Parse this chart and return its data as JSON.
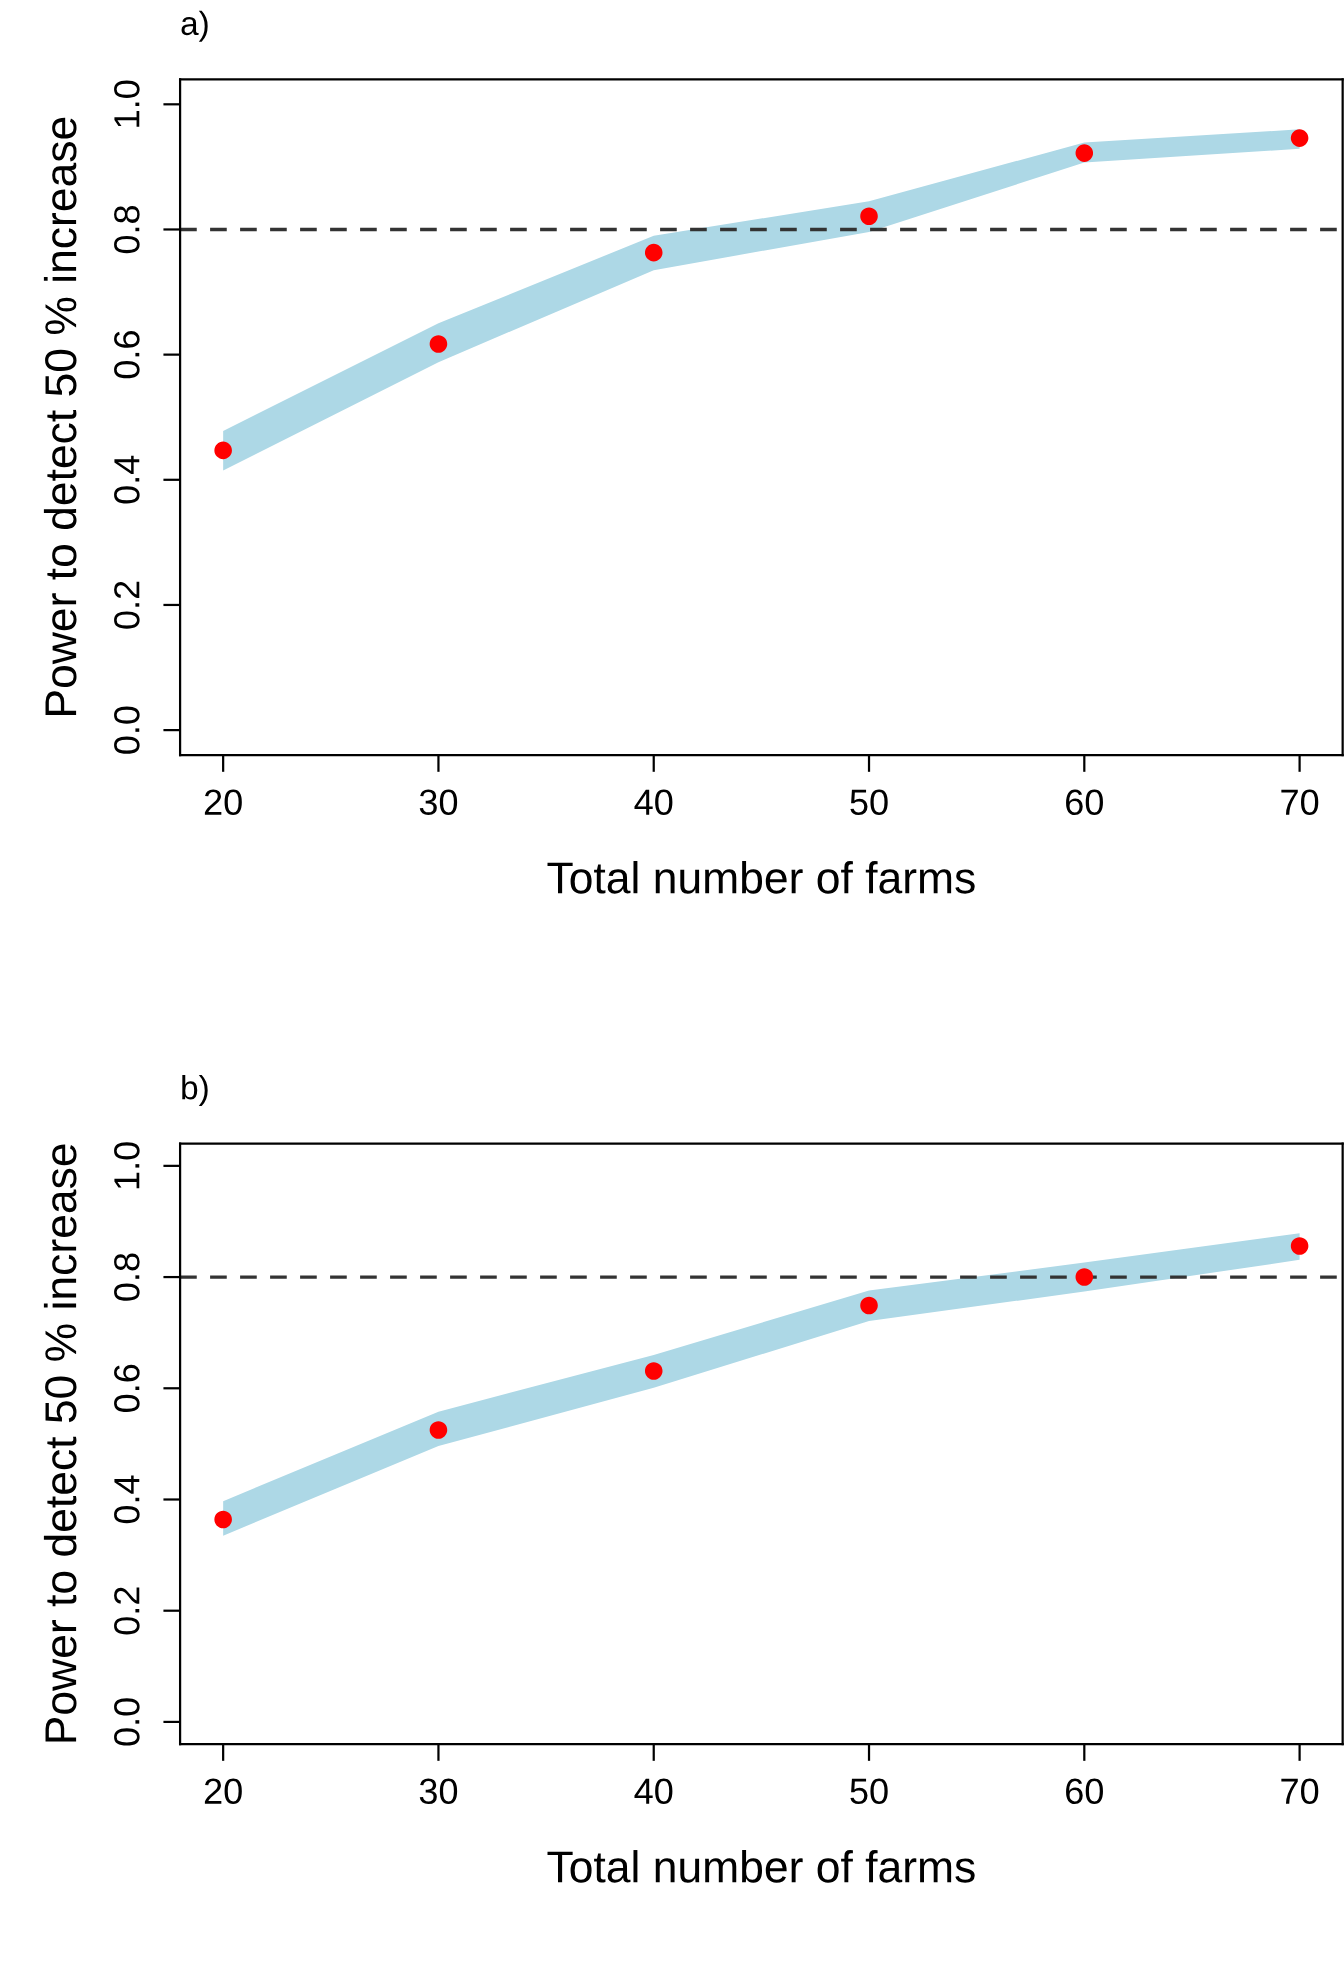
{
  "chart_data": [
    {
      "type": "scatter",
      "title": "a)",
      "xlabel": "Total number of farms",
      "ylabel": "Power to detect 50 % increase",
      "x": [
        20,
        30,
        40,
        50,
        60,
        70
      ],
      "series": [
        {
          "color": "#ff0000",
          "values": [
            0.447,
            0.617,
            0.763,
            0.821,
            0.922,
            0.946
          ],
          "lower": [
            0.415,
            0.588,
            0.735,
            0.796,
            0.907,
            0.929
          ],
          "upper": [
            0.478,
            0.65,
            0.79,
            0.845,
            0.939,
            0.96
          ]
        }
      ],
      "xlim": [
        18,
        72
      ],
      "xticks": [
        20,
        30,
        40,
        50,
        60,
        70
      ],
      "ylim": [
        -0.04,
        1.04
      ],
      "yticks": [
        {
          "value": 0,
          "label": "0.0"
        },
        {
          "value": 0.2,
          "label": "0.2"
        },
        {
          "value": 0.4,
          "label": "0.4"
        },
        {
          "value": 0.6,
          "label": "0.6"
        },
        {
          "value": 0.8,
          "label": "0.8"
        },
        {
          "value": 1,
          "label": "1.0"
        }
      ],
      "ref_lines": [
        {
          "axis": "y",
          "value": 0.8,
          "color": "#333333",
          "line_style": "dashed"
        }
      ],
      "grid": false,
      "legend": false,
      "marker": "circle"
    },
    {
      "type": "scatter",
      "title": "b)",
      "xlabel": "Total number of farms",
      "ylabel": "Power to detect 50 % increase",
      "x": [
        20,
        30,
        40,
        50,
        60,
        70
      ],
      "series": [
        {
          "color": "#ff0000",
          "values": [
            0.364,
            0.525,
            0.631,
            0.749,
            0.8,
            0.856
          ],
          "lower": [
            0.335,
            0.496,
            0.601,
            0.721,
            0.774,
            0.831
          ],
          "upper": [
            0.397,
            0.558,
            0.66,
            0.776,
            0.826,
            0.879
          ]
        }
      ],
      "xlim": [
        18,
        72
      ],
      "xticks": [
        20,
        30,
        40,
        50,
        60,
        70
      ],
      "ylim": [
        -0.04,
        1.04
      ],
      "yticks": [
        {
          "value": 0,
          "label": "0.0"
        },
        {
          "value": 0.2,
          "label": "0.2"
        },
        {
          "value": 0.4,
          "label": "0.4"
        },
        {
          "value": 0.6,
          "label": "0.6"
        },
        {
          "value": 0.8,
          "label": "0.8"
        },
        {
          "value": 1,
          "label": "1.0"
        }
      ],
      "ref_lines": [
        {
          "axis": "y",
          "value": 0.8,
          "color": "#333333",
          "line_style": "dashed"
        }
      ],
      "grid": false,
      "legend": false,
      "marker": "circle"
    }
  ]
}
